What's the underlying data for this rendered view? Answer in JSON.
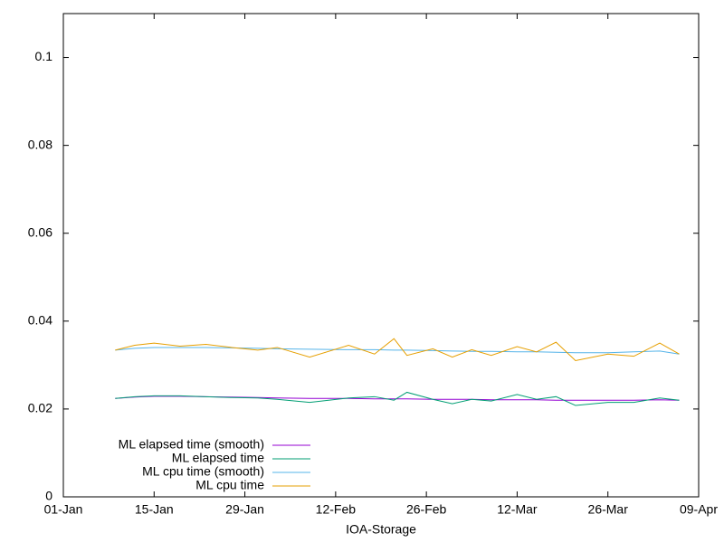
{
  "chart_data": {
    "type": "line",
    "xlabel": "IOA-Storage",
    "x": [
      "09-Jan",
      "12-Jan",
      "15-Jan",
      "19-Jan",
      "23-Jan",
      "27-Jan",
      "31-Jan",
      "03-Feb",
      "08-Feb",
      "14-Feb",
      "18-Feb",
      "21-Feb",
      "23-Feb",
      "27-Feb",
      "02-Mar",
      "05-Mar",
      "08-Mar",
      "12-Mar",
      "15-Mar",
      "18-Mar",
      "21-Mar",
      "26-Mar",
      "30-Mar",
      "03-Apr",
      "06-Apr"
    ],
    "series": [
      {
        "name": "ML elapsed time (smooth)",
        "color": "#9400d3",
        "values": [
          0.0224,
          0.0227,
          0.0229,
          0.0229,
          0.0228,
          0.0227,
          0.0226,
          0.0225,
          0.0224,
          0.0224,
          0.0223,
          0.0223,
          0.0223,
          0.0222,
          0.0222,
          0.0222,
          0.0221,
          0.0221,
          0.0221,
          0.022,
          0.022,
          0.022,
          0.022,
          0.0221,
          0.022
        ]
      },
      {
        "name": "ML elapsed time",
        "color": "#009e73",
        "values": [
          0.0224,
          0.0228,
          0.023,
          0.023,
          0.0228,
          0.0226,
          0.0225,
          0.0222,
          0.0215,
          0.0225,
          0.0228,
          0.022,
          0.0238,
          0.0222,
          0.0212,
          0.0222,
          0.0218,
          0.0233,
          0.0222,
          0.0228,
          0.0208,
          0.0215,
          0.0215,
          0.0225,
          0.022
        ]
      },
      {
        "name": "ML cpu time (smooth)",
        "color": "#56b4e9",
        "values": [
          0.0334,
          0.0338,
          0.034,
          0.034,
          0.034,
          0.0339,
          0.0338,
          0.0337,
          0.0336,
          0.0335,
          0.0335,
          0.0334,
          0.0334,
          0.0333,
          0.0332,
          0.0331,
          0.0331,
          0.033,
          0.033,
          0.0329,
          0.0328,
          0.0328,
          0.033,
          0.0332,
          0.0325
        ]
      },
      {
        "name": "ML cpu time",
        "color": "#e69f00",
        "values": [
          0.0334,
          0.0345,
          0.035,
          0.0343,
          0.0347,
          0.034,
          0.0334,
          0.034,
          0.0318,
          0.0345,
          0.0325,
          0.036,
          0.0322,
          0.0337,
          0.0318,
          0.0335,
          0.0322,
          0.0342,
          0.033,
          0.0352,
          0.031,
          0.0325,
          0.032,
          0.035,
          0.0325
        ]
      }
    ],
    "xlim": [
      "01-Jan",
      "09-Apr"
    ],
    "xticks": [
      "01-Jan",
      "15-Jan",
      "29-Jan",
      "12-Feb",
      "26-Feb",
      "12-Mar",
      "26-Mar",
      "09-Apr"
    ],
    "ylim": [
      0,
      0.11
    ],
    "yticks": [
      0,
      0.02,
      0.04,
      0.06,
      0.08,
      0.1
    ],
    "legend": "bottom-left"
  }
}
